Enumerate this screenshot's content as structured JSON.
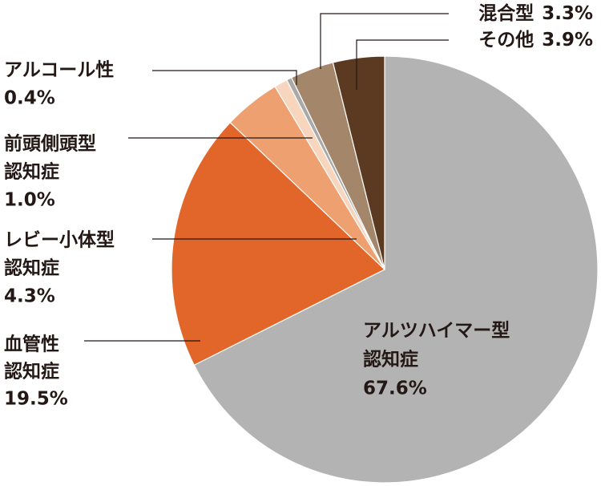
{
  "chart_data": {
    "type": "pie",
    "categories": [
      [
        "アルツハイマー型",
        "認知症"
      ],
      [
        "血管性",
        "認知症"
      ],
      [
        "レビー小体型",
        "認知症"
      ],
      [
        "前頭側頭型",
        "認知症"
      ],
      [
        "アルコール性"
      ],
      [
        "混合型"
      ],
      [
        "その他"
      ]
    ],
    "values": [
      67.6,
      19.5,
      4.3,
      1.0,
      0.4,
      3.3,
      3.9
    ],
    "value_labels": [
      "67.6%",
      "19.5%",
      "4.3%",
      "1.0%",
      "0.4%",
      "3.3%",
      "3.9%"
    ],
    "colors": [
      "#b3b3b3",
      "#e2652a",
      "#eea070",
      "#f8d5bd",
      "#a9a9a9",
      "#a4876a",
      "#5b3a21"
    ]
  }
}
